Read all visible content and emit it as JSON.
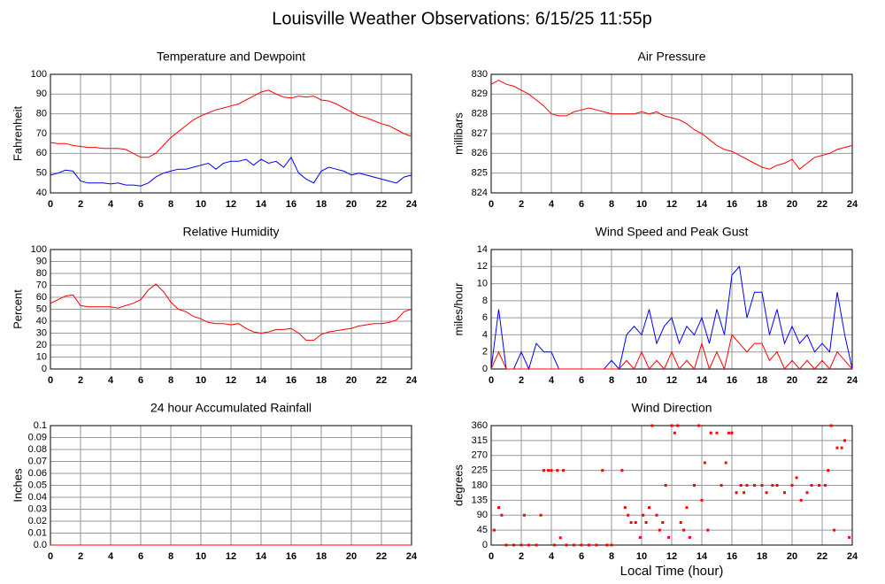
{
  "title": "Louisville Weather Observations: 6/15/25 11:55p",
  "chart_data": [
    {
      "type": "line",
      "title": "Temperature and Dewpoint",
      "ylabel": "Fahrenheit",
      "grid": true,
      "xlim": [
        0,
        24
      ],
      "xticks": [
        0,
        2,
        4,
        6,
        8,
        10,
        12,
        14,
        16,
        18,
        20,
        22,
        24
      ],
      "ylim": [
        40,
        100
      ],
      "yticks": [
        40,
        50,
        60,
        70,
        80,
        90,
        100
      ],
      "x": [
        0,
        0.5,
        1,
        1.5,
        2,
        2.5,
        3,
        3.5,
        4,
        4.5,
        5,
        5.5,
        6,
        6.5,
        7,
        7.5,
        8,
        8.5,
        9,
        9.5,
        10,
        10.5,
        11,
        11.5,
        12,
        12.5,
        13,
        13.5,
        14,
        14.5,
        15,
        15.5,
        16,
        16.5,
        17,
        17.5,
        18,
        18.5,
        19,
        19.5,
        20,
        20.5,
        21,
        21.5,
        22,
        22.5,
        23,
        23.5,
        24
      ],
      "series": [
        {
          "color": "#ff0000",
          "values": [
            65.5,
            65,
            65,
            64,
            63.5,
            63,
            63,
            62.5,
            62.5,
            62.5,
            62,
            60,
            58,
            58,
            60,
            64,
            68,
            71,
            74,
            77,
            79,
            80.5,
            82,
            83,
            84,
            85,
            87,
            89,
            91,
            92,
            90,
            88.5,
            88,
            89,
            88.5,
            89,
            87,
            86.5,
            85,
            83,
            81,
            79,
            78,
            76.5,
            75,
            74,
            72,
            70,
            68.5
          ]
        },
        {
          "color": "#0000ff",
          "values": [
            49,
            50,
            51.5,
            51,
            46,
            45,
            45,
            45,
            44.5,
            45,
            44,
            44,
            43.5,
            45,
            48,
            50,
            51,
            52,
            52,
            53,
            54,
            55,
            52,
            55,
            56,
            56,
            57,
            54,
            57,
            55,
            56,
            53,
            58,
            50,
            47,
            45,
            51,
            53,
            52,
            51,
            49,
            50,
            49,
            48,
            47,
            46,
            45,
            48,
            49
          ]
        }
      ]
    },
    {
      "type": "line",
      "title": "Air Pressure",
      "ylabel": "millibars",
      "grid": true,
      "xlim": [
        0,
        24
      ],
      "xticks": [
        0,
        2,
        4,
        6,
        8,
        10,
        12,
        14,
        16,
        18,
        20,
        22,
        24
      ],
      "ylim": [
        824,
        830
      ],
      "yticks": [
        824,
        825,
        826,
        827,
        828,
        829,
        830
      ],
      "x": [
        0,
        0.5,
        1,
        1.5,
        2,
        2.5,
        3,
        3.5,
        4,
        4.5,
        5,
        5.5,
        6,
        6.5,
        7,
        7.5,
        8,
        8.5,
        9,
        9.5,
        10,
        10.5,
        11,
        11.5,
        12,
        12.5,
        13,
        13.5,
        14,
        14.5,
        15,
        15.5,
        16,
        16.5,
        17,
        17.5,
        18,
        18.5,
        19,
        19.5,
        20,
        20.5,
        21,
        21.5,
        22,
        22.5,
        23,
        23.5,
        24
      ],
      "series": [
        {
          "color": "#ff0000",
          "values": [
            829.5,
            829.7,
            829.5,
            829.4,
            829.2,
            829,
            828.7,
            828.4,
            828,
            827.9,
            827.9,
            828.1,
            828.2,
            828.3,
            828.2,
            828.1,
            828,
            828,
            828,
            828,
            828.1,
            828,
            828.1,
            827.9,
            827.8,
            827.7,
            827.5,
            827.2,
            827,
            826.7,
            826.4,
            826.2,
            826.1,
            825.9,
            825.7,
            825.5,
            825.3,
            825.2,
            825.4,
            825.5,
            825.7,
            825.2,
            825.5,
            825.8,
            825.9,
            826,
            826.2,
            826.3,
            826.4
          ]
        }
      ]
    },
    {
      "type": "line",
      "title": "Relative Humidity",
      "ylabel": "Percent",
      "grid": true,
      "xlim": [
        0,
        24
      ],
      "xticks": [
        0,
        2,
        4,
        6,
        8,
        10,
        12,
        14,
        16,
        18,
        20,
        22,
        24
      ],
      "ylim": [
        0,
        100
      ],
      "yticks": [
        0,
        10,
        20,
        30,
        40,
        50,
        60,
        70,
        80,
        90,
        100
      ],
      "x": [
        0,
        0.5,
        1,
        1.5,
        2,
        2.5,
        3,
        3.5,
        4,
        4.5,
        5,
        5.5,
        6,
        6.5,
        7,
        7.5,
        8,
        8.5,
        9,
        9.5,
        10,
        10.5,
        11,
        11.5,
        12,
        12.5,
        13,
        13.5,
        14,
        14.5,
        15,
        15.5,
        16,
        16.5,
        17,
        17.5,
        18,
        18.5,
        19,
        19.5,
        20,
        20.5,
        21,
        21.5,
        22,
        22.5,
        23,
        23.5,
        24
      ],
      "series": [
        {
          "color": "#ff0000",
          "values": [
            55,
            58,
            61,
            62,
            53,
            52,
            52,
            52,
            52,
            51,
            53,
            55,
            58,
            66,
            71,
            65,
            56,
            50,
            48,
            44,
            42,
            39,
            38,
            38,
            37,
            38,
            34,
            31,
            30,
            31,
            33,
            33,
            34,
            30,
            24,
            24,
            29,
            31,
            32,
            33,
            34,
            36,
            37,
            38,
            38,
            39,
            41,
            48,
            50
          ]
        }
      ]
    },
    {
      "type": "line",
      "title": "Wind Speed and Peak Gust",
      "ylabel": "miles/hour",
      "grid": true,
      "xlim": [
        0,
        24
      ],
      "xticks": [
        0,
        2,
        4,
        6,
        8,
        10,
        12,
        14,
        16,
        18,
        20,
        22,
        24
      ],
      "ylim": [
        0,
        14
      ],
      "yticks": [
        0,
        2,
        4,
        6,
        8,
        10,
        12,
        14
      ],
      "x": [
        0,
        0.5,
        1,
        1.5,
        2,
        2.5,
        3,
        3.5,
        4,
        4.5,
        5,
        5.5,
        6,
        6.5,
        7,
        7.5,
        8,
        8.5,
        9,
        9.5,
        10,
        10.5,
        11,
        11.5,
        12,
        12.5,
        13,
        13.5,
        14,
        14.5,
        15,
        15.5,
        16,
        16.5,
        17,
        17.5,
        18,
        18.5,
        19,
        19.5,
        20,
        20.5,
        21,
        21.5,
        22,
        22.5,
        23,
        23.5,
        24
      ],
      "series": [
        {
          "color": "#0000ff",
          "values": [
            0,
            7,
            0,
            0,
            2,
            0,
            3,
            2,
            2,
            0,
            0,
            0,
            0,
            0,
            0,
            0,
            1,
            0,
            4,
            5,
            4,
            7,
            3,
            5,
            6,
            3,
            5,
            4,
            6,
            3,
            7,
            4,
            11,
            12,
            6,
            9,
            9,
            4,
            7,
            3,
            5,
            3,
            4,
            2,
            3,
            2,
            9,
            4,
            0
          ]
        },
        {
          "color": "#ff0000",
          "values": [
            0,
            2,
            0,
            0,
            0,
            0,
            0,
            0,
            0,
            0,
            0,
            0,
            0,
            0,
            0,
            0,
            0,
            0,
            1,
            0,
            2,
            0,
            1,
            0,
            2,
            0,
            1,
            0,
            3,
            0,
            2,
            0,
            4,
            3,
            2,
            3,
            3,
            1,
            2,
            0,
            1,
            0,
            1,
            0,
            1,
            0,
            2,
            1,
            0
          ]
        }
      ]
    },
    {
      "type": "line",
      "title": "24 hour Accumulated Rainfall",
      "ylabel": "Inches",
      "grid": true,
      "xlim": [
        0,
        24
      ],
      "xticks": [
        0,
        2,
        4,
        6,
        8,
        10,
        12,
        14,
        16,
        18,
        20,
        22,
        24
      ],
      "ylim": [
        0,
        0.1
      ],
      "yticks": [
        {
          "value": 0,
          "label": "0.0"
        },
        0.01,
        0.02,
        0.03,
        0.04,
        0.05,
        0.06,
        0.07,
        0.08,
        0.09,
        0.1
      ],
      "x": [
        0,
        24
      ],
      "series": [
        {
          "color": "#ff0000",
          "values": [
            0,
            0
          ]
        }
      ]
    },
    {
      "type": "scatter",
      "title": "Wind Direction",
      "ylabel": "degrees",
      "xlabel": "Local Time (hour)",
      "grid": true,
      "color": "#ff0000",
      "xlim": [
        0,
        24
      ],
      "xticks": [
        0,
        2,
        4,
        6,
        8,
        10,
        12,
        14,
        16,
        18,
        20,
        22,
        24
      ],
      "ylim": [
        0,
        360
      ],
      "yticks": [
        0,
        45,
        90,
        135,
        180,
        225,
        270,
        315,
        360
      ],
      "x": [
        0.2,
        0.5,
        0.7,
        1,
        1.5,
        2,
        2.2,
        2.5,
        3,
        3.3,
        3.5,
        3.8,
        4,
        4.2,
        4.4,
        4.6,
        4.8,
        5,
        5.5,
        6,
        6.5,
        7,
        7.4,
        7.7,
        8,
        8.7,
        8.9,
        9.1,
        9.3,
        9.6,
        9.9,
        10.1,
        10.3,
        10.5,
        10.7,
        11,
        11.2,
        11.4,
        11.6,
        11.8,
        12,
        12.2,
        12.4,
        12.6,
        12.8,
        13,
        13.2,
        13.5,
        13.8,
        14,
        14.2,
        14.4,
        14.6,
        15,
        15.3,
        15.6,
        15.8,
        16,
        16.3,
        16.6,
        16.8,
        17,
        17.5,
        18,
        18.3,
        18.7,
        19,
        19.5,
        20,
        20.3,
        20.6,
        21,
        21.3,
        21.8,
        22.2,
        22.4,
        22.6,
        22.8,
        23,
        23.3,
        23.5,
        23.8
      ],
      "values": [
        45,
        113,
        90,
        0,
        0,
        0,
        90,
        0,
        0,
        90,
        225,
        225,
        225,
        0,
        225,
        22,
        225,
        0,
        0,
        0,
        0,
        0,
        225,
        0,
        0,
        225,
        113,
        90,
        68,
        68,
        23,
        90,
        68,
        113,
        360,
        90,
        45,
        68,
        180,
        23,
        360,
        338,
        360,
        68,
        45,
        113,
        23,
        180,
        360,
        135,
        248,
        45,
        338,
        338,
        180,
        248,
        338,
        338,
        158,
        180,
        158,
        180,
        180,
        180,
        158,
        180,
        180,
        158,
        180,
        203,
        135,
        158,
        180,
        180,
        180,
        225,
        360,
        45,
        293,
        293,
        315,
        23
      ]
    }
  ]
}
